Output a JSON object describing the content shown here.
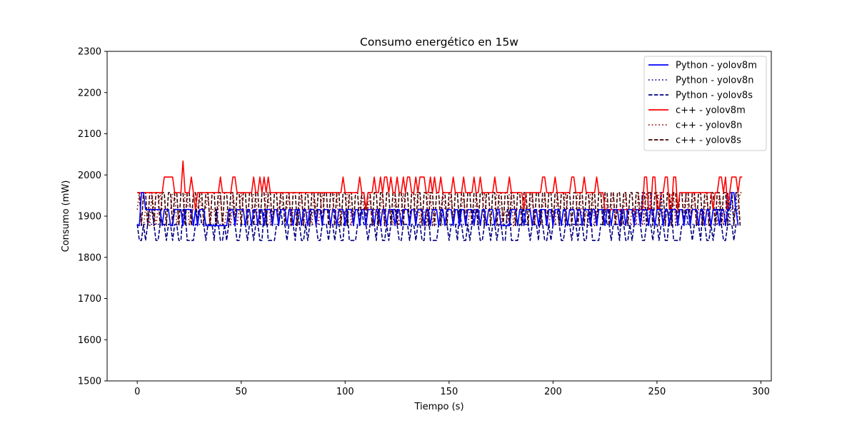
{
  "chart_data": {
    "type": "line",
    "title": "Consumo energético en 15w",
    "xlabel": "Tiempo (s)",
    "ylabel": "Consumo (mW)",
    "xlim": [
      -14.5,
      305
    ],
    "ylim": [
      1500,
      2300
    ],
    "xticks": [
      0,
      50,
      100,
      150,
      200,
      250,
      300
    ],
    "yticks": [
      1500,
      1600,
      1700,
      1800,
      1900,
      2000,
      2100,
      2200,
      2300
    ],
    "grid": false,
    "legend_position": "top-right",
    "series": [
      {
        "name": "Python - yolov8m",
        "color": "#0000ff",
        "dash": "solid",
        "levels": [
          1877,
          1916,
          1957
        ],
        "base": 1916,
        "excursions": [
          [
            0,
            1877
          ],
          [
            1,
            1877
          ],
          [
            2,
            1957
          ],
          [
            3,
            1957
          ],
          [
            12,
            1877
          ],
          [
            16,
            1877
          ],
          [
            17,
            1877
          ],
          [
            22,
            1877
          ],
          [
            27,
            1877
          ],
          [
            29,
            1877
          ],
          [
            33,
            1877
          ],
          [
            34,
            1877
          ],
          [
            35,
            1877
          ],
          [
            36,
            1877
          ],
          [
            37,
            1877
          ],
          [
            38,
            1877
          ],
          [
            39,
            1877
          ],
          [
            40,
            1877
          ],
          [
            41,
            1877
          ],
          [
            42,
            1877
          ],
          [
            43,
            1877
          ],
          [
            47,
            1877
          ],
          [
            52,
            1877
          ],
          [
            55,
            1877
          ],
          [
            58,
            1877
          ],
          [
            61,
            1877
          ],
          [
            65,
            1877
          ],
          [
            68,
            1877
          ],
          [
            72,
            1877
          ],
          [
            75,
            1877
          ],
          [
            79,
            1877
          ],
          [
            82,
            1877
          ],
          [
            86,
            1877
          ],
          [
            89,
            1877
          ],
          [
            93,
            1877
          ],
          [
            96,
            1877
          ],
          [
            100,
            1877
          ],
          [
            104,
            1877
          ],
          [
            107,
            1877
          ],
          [
            110,
            1877
          ],
          [
            114,
            1877
          ],
          [
            117,
            1877
          ],
          [
            120,
            1877
          ],
          [
            124,
            1877
          ],
          [
            127,
            1877
          ],
          [
            131,
            1877
          ],
          [
            134,
            1877
          ],
          [
            138,
            1877
          ],
          [
            141,
            1877
          ],
          [
            145,
            1877
          ],
          [
            148,
            1877
          ],
          [
            152,
            1877
          ],
          [
            155,
            1877
          ],
          [
            158,
            1877
          ],
          [
            162,
            1877
          ],
          [
            165,
            1877
          ],
          [
            168,
            1877
          ],
          [
            172,
            1877
          ],
          [
            175,
            1877
          ],
          [
            176,
            1877
          ],
          [
            177,
            1877
          ],
          [
            178,
            1877
          ],
          [
            179,
            1877
          ],
          [
            183,
            1877
          ],
          [
            186,
            1877
          ],
          [
            190,
            1877
          ],
          [
            193,
            1877
          ],
          [
            197,
            1877
          ],
          [
            200,
            1877
          ],
          [
            204,
            1877
          ],
          [
            207,
            1877
          ],
          [
            211,
            1877
          ],
          [
            214,
            1877
          ],
          [
            218,
            1877
          ],
          [
            221,
            1877
          ],
          [
            225,
            1877
          ],
          [
            228,
            1877
          ],
          [
            232,
            1877
          ],
          [
            235,
            1877
          ],
          [
            239,
            1877
          ],
          [
            242,
            1877
          ],
          [
            246,
            1877
          ],
          [
            249,
            1877
          ],
          [
            253,
            1877
          ],
          [
            256,
            1877
          ],
          [
            260,
            1877
          ],
          [
            263,
            1877
          ],
          [
            266,
            1877
          ],
          [
            270,
            1877
          ],
          [
            273,
            1877
          ],
          [
            276,
            1877
          ],
          [
            280,
            1877
          ],
          [
            283,
            1877
          ],
          [
            286,
            1957
          ],
          [
            287,
            1957
          ],
          [
            289,
            1877
          ]
        ],
        "x_end": 289
      },
      {
        "name": "Python - yolov8n",
        "color": "#00008b",
        "dash": "dotted",
        "levels": [
          1841,
          1880,
          1957
        ],
        "base": 1880,
        "pattern": [
          1880,
          1841,
          1880,
          1880,
          1841,
          1880,
          1880,
          1880,
          1841,
          1880,
          1880
        ],
        "spikes": [
          [
            243,
            1957
          ],
          [
            247,
            1957
          ],
          [
            252,
            1957
          ],
          [
            284,
            1957
          ],
          [
            286,
            1957
          ],
          [
            288,
            1957
          ]
        ],
        "x_end": 289
      },
      {
        "name": "Python - yolov8s",
        "color": "#000080",
        "dash": "dashed",
        "levels": [
          1841,
          1880,
          1916
        ],
        "pattern": [
          1880,
          1841,
          1880,
          1841,
          1880,
          1916,
          1880,
          1841,
          1841,
          1880,
          1880,
          1841,
          1916
        ],
        "x_end": 289
      },
      {
        "name": "c++ - yolov8m",
        "color": "#ff0000",
        "dash": "solid",
        "levels": [
          1916,
          1957,
          1995,
          2034
        ],
        "base": 1957,
        "excursions": [
          [
            13,
            1995
          ],
          [
            14,
            1995
          ],
          [
            15,
            1995
          ],
          [
            16,
            1995
          ],
          [
            17,
            1995
          ],
          [
            18,
            1957
          ],
          [
            22,
            2034
          ],
          [
            23,
            1957
          ],
          [
            26,
            1995
          ],
          [
            28,
            1916
          ],
          [
            32,
            1957
          ],
          [
            40,
            1995
          ],
          [
            46,
            1995
          ],
          [
            47,
            1995
          ],
          [
            56,
            1995
          ],
          [
            59,
            1995
          ],
          [
            61,
            1995
          ],
          [
            63,
            1995
          ],
          [
            99,
            1995
          ],
          [
            107,
            1995
          ],
          [
            110,
            1916
          ],
          [
            114,
            1995
          ],
          [
            117,
            1995
          ],
          [
            119,
            1995
          ],
          [
            120,
            1995
          ],
          [
            122,
            1995
          ],
          [
            125,
            1995
          ],
          [
            128,
            1995
          ],
          [
            130,
            1995
          ],
          [
            131,
            1995
          ],
          [
            134,
            1995
          ],
          [
            136,
            1995
          ],
          [
            137,
            1995
          ],
          [
            138,
            1995
          ],
          [
            141,
            1995
          ],
          [
            143,
            1995
          ],
          [
            146,
            1995
          ],
          [
            152,
            1995
          ],
          [
            157,
            1995
          ],
          [
            162,
            1995
          ],
          [
            165,
            1995
          ],
          [
            172,
            1995
          ],
          [
            179,
            1995
          ],
          [
            186,
            1916
          ],
          [
            195,
            1995
          ],
          [
            196,
            1995
          ],
          [
            201,
            1995
          ],
          [
            209,
            1995
          ],
          [
            210,
            1995
          ],
          [
            215,
            1995
          ],
          [
            221,
            1995
          ],
          [
            225,
            1916
          ],
          [
            226,
            1916
          ],
          [
            227,
            1916
          ],
          [
            228,
            1916
          ],
          [
            229,
            1916
          ],
          [
            230,
            1916
          ],
          [
            231,
            1916
          ],
          [
            232,
            1916
          ],
          [
            233,
            1916
          ],
          [
            234,
            1916
          ],
          [
            235,
            1916
          ],
          [
            236,
            1916
          ],
          [
            237,
            1916
          ],
          [
            238,
            1916
          ],
          [
            239,
            1916
          ],
          [
            240,
            1916
          ],
          [
            241,
            1916
          ],
          [
            242,
            1916
          ],
          [
            243,
            1916
          ],
          [
            244,
            1995
          ],
          [
            245,
            1995
          ],
          [
            246,
            1916
          ],
          [
            247,
            1916
          ],
          [
            248,
            1995
          ],
          [
            249,
            1995
          ],
          [
            250,
            1916
          ],
          [
            251,
            1916
          ],
          [
            254,
            1995
          ],
          [
            255,
            1995
          ],
          [
            256,
            1916
          ],
          [
            257,
            1916
          ],
          [
            258,
            1995
          ],
          [
            259,
            1995
          ],
          [
            260,
            1916
          ],
          [
            277,
            1916
          ],
          [
            280,
            1995
          ],
          [
            281,
            1995
          ],
          [
            282,
            1957
          ],
          [
            283,
            1995
          ],
          [
            284,
            1916
          ],
          [
            286,
            1995
          ],
          [
            287,
            1995
          ],
          [
            288,
            1995
          ],
          [
            289,
            1957
          ],
          [
            290,
            1995
          ],
          [
            291,
            1995
          ]
        ],
        "x_end": 291
      },
      {
        "name": "c++ - yolov8n",
        "color": "#8b0000",
        "dash": "dotted",
        "levels": [
          1877,
          1916,
          1957
        ],
        "base": 1916,
        "pattern": [
          1916,
          1877,
          1957,
          1916,
          1916,
          1877,
          1916,
          1957,
          1916,
          1877,
          1916,
          1916,
          1957
        ],
        "x_end": 291
      },
      {
        "name": "c++ - yolov8s",
        "color": "#3d0000",
        "dash": "dashed",
        "levels": [
          1877,
          1916,
          1957
        ],
        "base": 1957,
        "pattern": [
          1957,
          1916,
          1957,
          1877,
          1957,
          1916,
          1916,
          1957,
          1877,
          1957,
          1916
        ],
        "x_end": 290
      }
    ]
  }
}
